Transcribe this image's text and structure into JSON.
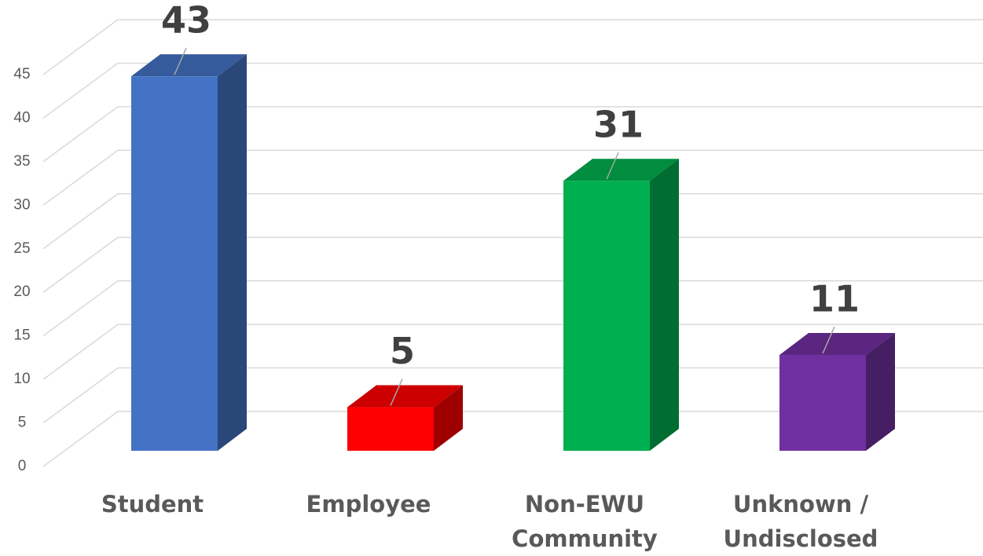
{
  "chart_data": {
    "type": "bar3d",
    "categories": [
      "Student",
      "Employee",
      "Non-EWU Community",
      "Unknown / Undisclosed"
    ],
    "values": [
      43,
      5,
      31,
      11
    ],
    "colors": [
      "#4472c4",
      "#ff0000",
      "#00b050",
      "#7030a0"
    ],
    "ylim": [
      0,
      45
    ],
    "yticks": [
      0,
      5,
      10,
      15,
      20,
      25,
      30,
      35,
      40,
      45
    ],
    "grid": true
  }
}
